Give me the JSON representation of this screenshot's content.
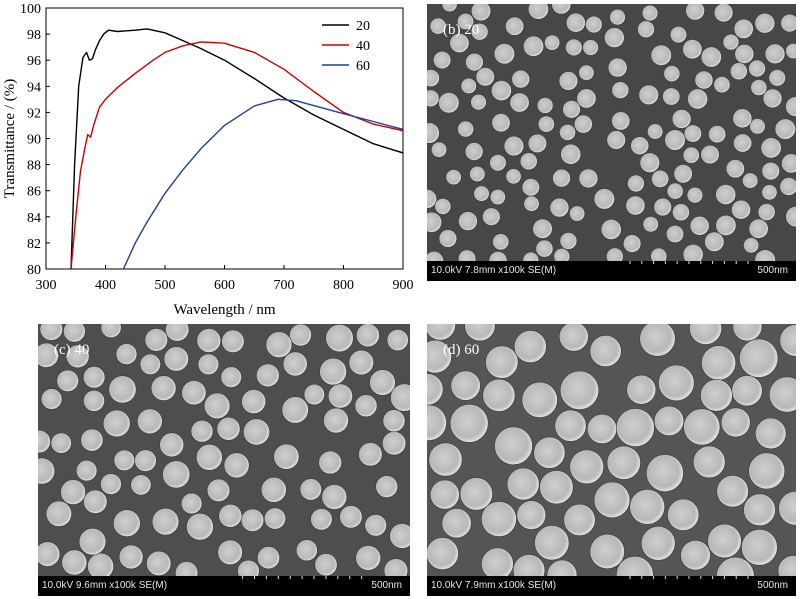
{
  "chart_data": {
    "type": "line",
    "xlabel": "Wavelength / nm",
    "ylabel": "Transmittance / (%)",
    "xlim": [
      300,
      900
    ],
    "ylim": [
      80,
      100
    ],
    "xticks": [
      "300",
      "400",
      "500",
      "600",
      "700",
      "800",
      "900"
    ],
    "yticks": [
      "80",
      "82",
      "84",
      "86",
      "88",
      "90",
      "92",
      "94",
      "96",
      "98",
      "100"
    ],
    "legend_position": "top-right",
    "grid": false,
    "series": [
      {
        "name": "20",
        "color": "#000000",
        "x": [
          342,
          348,
          355,
          362,
          368,
          373,
          378,
          383,
          390,
          397,
          405,
          420,
          450,
          470,
          500,
          530,
          560,
          600,
          650,
          700,
          750,
          800,
          850,
          900
        ],
        "y": [
          80,
          88,
          94,
          96.2,
          96.6,
          96.0,
          96.1,
          96.8,
          97.5,
          98.0,
          98.3,
          98.2,
          98.3,
          98.4,
          98.1,
          97.5,
          96.9,
          96.0,
          94.6,
          93.1,
          91.8,
          90.7,
          89.6,
          88.9
        ]
      },
      {
        "name": "40",
        "color": "#cc0000",
        "x": [
          342,
          350,
          358,
          365,
          370,
          375,
          380,
          390,
          400,
          420,
          450,
          480,
          500,
          530,
          560,
          600,
          650,
          700,
          750,
          800,
          850,
          900
        ],
        "y": [
          80,
          84,
          87.5,
          89.2,
          90.3,
          90.1,
          91.0,
          92.4,
          93.0,
          93.9,
          95.0,
          96.0,
          96.6,
          97.1,
          97.4,
          97.3,
          96.6,
          95.3,
          93.6,
          92.0,
          91.1,
          90.6
        ]
      },
      {
        "name": "60",
        "color": "#1f3f9f",
        "x": [
          430,
          450,
          470,
          500,
          530,
          560,
          600,
          650,
          690,
          720,
          760,
          800,
          850,
          900
        ],
        "y": [
          80,
          82.0,
          83.6,
          85.8,
          87.6,
          89.2,
          91.0,
          92.5,
          93.0,
          92.9,
          92.4,
          91.9,
          91.3,
          90.7
        ]
      }
    ]
  },
  "sem_panels": [
    {
      "id": "b",
      "label": "(b) 20",
      "params": "10.0kV 7.8mm x100k SE(M)",
      "scale": "500nm"
    },
    {
      "id": "c",
      "label": "(c) 40",
      "params": "10.0kV 9.6mm x100k SE(M)",
      "scale": "500nm"
    },
    {
      "id": "d",
      "label": "(d) 60",
      "params": "10.0kV 7.9mm x100k SE(M)",
      "scale": "500nm"
    }
  ]
}
